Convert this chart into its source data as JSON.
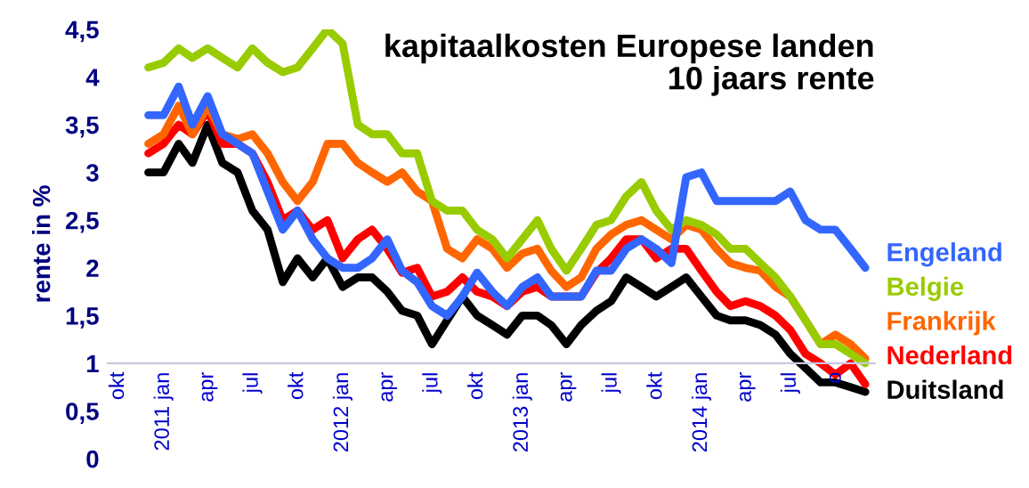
{
  "chart_data": {
    "type": "line",
    "title": "kapitaalkosten Europese landen\n10 jaars rente",
    "ylabel": "rente in %",
    "x": [
      "2010-12",
      "2011-01",
      "2011-02",
      "2011-03",
      "2011-04",
      "2011-05",
      "2011-06",
      "2011-07",
      "2011-08",
      "2011-09",
      "2011-10",
      "2011-11",
      "2011-12",
      "2012-01",
      "2012-02",
      "2012-03",
      "2012-04",
      "2012-05",
      "2012-06",
      "2012-07",
      "2012-08",
      "2012-09",
      "2012-10",
      "2012-11",
      "2012-12",
      "2013-01",
      "2013-02",
      "2013-03",
      "2013-04",
      "2013-05",
      "2013-06",
      "2013-07",
      "2013-08",
      "2013-09",
      "2013-10",
      "2013-11",
      "2013-12",
      "2014-01",
      "2014-02",
      "2014-03",
      "2014-04",
      "2014-05",
      "2014-06",
      "2014-07",
      "2014-08",
      "2014-09",
      "2014-10",
      "2014-11",
      "2014-12"
    ],
    "series": [
      {
        "name": "Engeland",
        "color": "#3366ff",
        "values": [
          3.6,
          3.6,
          3.9,
          3.5,
          3.8,
          3.4,
          3.3,
          3.2,
          2.8,
          2.4,
          2.6,
          2.3,
          2.1,
          2.0,
          2.0,
          2.1,
          2.3,
          1.97,
          1.85,
          1.6,
          1.5,
          1.7,
          1.95,
          1.75,
          1.6,
          1.8,
          1.9,
          1.7,
          1.7,
          1.7,
          1.97,
          1.97,
          2.2,
          2.3,
          2.2,
          2.05,
          2.95,
          3.0,
          2.7,
          2.7,
          2.7,
          2.7,
          2.7,
          2.8,
          2.5,
          2.4,
          2.4,
          2.2,
          2.0
        ]
      },
      {
        "name": "Belgie",
        "color": "#99cc00",
        "values": [
          4.1,
          4.15,
          4.3,
          4.2,
          4.3,
          4.2,
          4.1,
          4.3,
          4.15,
          4.05,
          4.1,
          4.3,
          4.5,
          4.35,
          3.5,
          3.4,
          3.4,
          3.2,
          3.2,
          2.7,
          2.6,
          2.6,
          2.4,
          2.3,
          2.1,
          2.3,
          2.5,
          2.2,
          1.97,
          2.2,
          2.45,
          2.5,
          2.75,
          2.9,
          2.6,
          2.4,
          2.5,
          2.45,
          2.35,
          2.2,
          2.2,
          2.05,
          1.9,
          1.7,
          1.45,
          1.2,
          1.2,
          1.1,
          1.0
        ]
      },
      {
        "name": "Frankrijk",
        "color": "#ff6600",
        "values": [
          3.3,
          3.4,
          3.7,
          3.4,
          3.7,
          3.4,
          3.35,
          3.4,
          3.2,
          2.9,
          2.7,
          2.9,
          3.3,
          3.3,
          3.1,
          3.0,
          2.9,
          3.0,
          2.8,
          2.7,
          2.2,
          2.1,
          2.3,
          2.2,
          2.0,
          2.15,
          2.2,
          1.97,
          1.8,
          1.9,
          2.2,
          2.35,
          2.45,
          2.5,
          2.4,
          2.3,
          2.45,
          2.4,
          2.2,
          2.05,
          2.0,
          1.97,
          1.8,
          1.7,
          1.45,
          1.2,
          1.3,
          1.2,
          1.05
        ]
      },
      {
        "name": "Nederland",
        "color": "#ff0000",
        "values": [
          3.2,
          3.3,
          3.5,
          3.4,
          3.65,
          3.3,
          3.3,
          3.2,
          2.9,
          2.5,
          2.6,
          2.4,
          2.5,
          2.1,
          2.3,
          2.4,
          2.2,
          1.95,
          2.0,
          1.7,
          1.75,
          1.9,
          1.75,
          1.7,
          1.6,
          1.75,
          1.8,
          1.7,
          1.7,
          1.7,
          1.95,
          2.1,
          2.3,
          2.3,
          2.1,
          2.2,
          2.2,
          1.97,
          1.75,
          1.6,
          1.65,
          1.6,
          1.5,
          1.35,
          1.1,
          1.0,
          0.88,
          1.0,
          0.78
        ]
      },
      {
        "name": "Duitsland",
        "color": "#000000",
        "values": [
          3.0,
          3.0,
          3.3,
          3.1,
          3.5,
          3.1,
          3.0,
          2.6,
          2.4,
          1.85,
          2.1,
          1.9,
          2.1,
          1.8,
          1.9,
          1.9,
          1.75,
          1.55,
          1.5,
          1.2,
          1.45,
          1.7,
          1.5,
          1.4,
          1.3,
          1.5,
          1.5,
          1.4,
          1.2,
          1.4,
          1.55,
          1.65,
          1.9,
          1.8,
          1.7,
          1.8,
          1.9,
          1.7,
          1.5,
          1.45,
          1.45,
          1.4,
          1.3,
          1.1,
          0.95,
          0.8,
          0.8,
          0.75,
          0.7
        ]
      }
    ],
    "xlim": [
      "2010-09-10",
      "2014-12-20"
    ],
    "xticks": [
      {
        "value": "2010-10",
        "label": "okt"
      },
      {
        "value": "2011-01",
        "label": "2011 jan"
      },
      {
        "value": "2011-04",
        "label": "apr"
      },
      {
        "value": "2011-07",
        "label": "jul"
      },
      {
        "value": "2011-10",
        "label": "okt"
      },
      {
        "value": "2012-01",
        "label": "2012 jan"
      },
      {
        "value": "2012-04",
        "label": "apr"
      },
      {
        "value": "2012-07",
        "label": "jul"
      },
      {
        "value": "2012-10",
        "label": "okt"
      },
      {
        "value": "2013-01",
        "label": "2013 jan"
      },
      {
        "value": "2013-04",
        "label": "apr"
      },
      {
        "value": "2013-07",
        "label": "jul"
      },
      {
        "value": "2013-10",
        "label": "okt"
      },
      {
        "value": "2014-01",
        "label": "2014 jan"
      },
      {
        "value": "2014-04",
        "label": "apr"
      },
      {
        "value": "2014-07",
        "label": "jul"
      },
      {
        "value": "2014-10",
        "label": "o"
      }
    ],
    "ylim": [
      0,
      4.5
    ],
    "yticks": [
      {
        "value": 0,
        "label": "0"
      },
      {
        "value": 0.5,
        "label": "0,5"
      },
      {
        "value": 1,
        "label": "1"
      },
      {
        "value": 1.5,
        "label": "1,5"
      },
      {
        "value": 2,
        "label": "2"
      },
      {
        "value": 2.5,
        "label": "2,5"
      },
      {
        "value": 3,
        "label": "3"
      },
      {
        "value": 3.5,
        "label": "3,5"
      },
      {
        "value": 4,
        "label": "4"
      },
      {
        "value": 4.5,
        "label": "4,5"
      }
    ],
    "grid": false,
    "legend": false,
    "marker": "none",
    "line_style": "solid"
  }
}
